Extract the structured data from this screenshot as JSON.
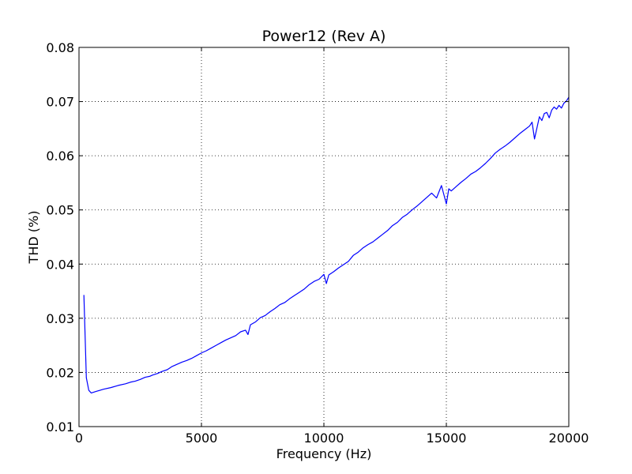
{
  "chart_data": {
    "type": "line",
    "title": "Power12 (Rev A)",
    "xlabel": "Frequency (Hz)",
    "ylabel": "THD (%)",
    "xlim": [
      0,
      20000
    ],
    "ylim": [
      0.01,
      0.08
    ],
    "xticks": [
      "0",
      "5000",
      "10000",
      "15000",
      "20000"
    ],
    "yticks": [
      "0.01",
      "0.02",
      "0.03",
      "0.04",
      "0.05",
      "0.06",
      "0.07",
      "0.08"
    ],
    "grid": true,
    "line_color": "#0000ff",
    "series": [
      {
        "x": [
          200,
          300,
          400,
          500,
          700,
          1000,
          1300,
          1600,
          1900,
          2100,
          2300,
          2500,
          2700,
          2900,
          3000,
          3200,
          3400,
          3600,
          3700,
          3800,
          4000,
          4200,
          4400,
          4600,
          4800,
          5000,
          5200,
          5400,
          5600,
          5800,
          6000,
          6200,
          6400,
          6600,
          6800,
          6900,
          7000,
          7200,
          7400,
          7600,
          7800,
          8000,
          8200,
          8400,
          8600,
          8800,
          9000,
          9200,
          9400,
          9600,
          9800,
          10000,
          10100,
          10200,
          10400,
          10600,
          10800,
          11000,
          11200,
          11400,
          11600,
          11800,
          12000,
          12200,
          12400,
          12600,
          12800,
          13000,
          13200,
          13400,
          13600,
          13800,
          14000,
          14200,
          14400,
          14600,
          14800,
          14900,
          15000,
          15100,
          15200,
          15400,
          15600,
          15800,
          16000,
          16200,
          16400,
          16600,
          16800,
          17000,
          17200,
          17400,
          17600,
          17800,
          18000,
          18200,
          18400,
          18500,
          18600,
          18800,
          18900,
          19000,
          19100,
          19200,
          19300,
          19400,
          19500,
          19600,
          19700,
          19800,
          19900,
          20000
        ],
        "y": [
          0.0343,
          0.019,
          0.0167,
          0.0162,
          0.0165,
          0.0169,
          0.0172,
          0.0176,
          0.0179,
          0.0182,
          0.0184,
          0.0187,
          0.0191,
          0.0193,
          0.0195,
          0.0198,
          0.0202,
          0.0205,
          0.0208,
          0.0211,
          0.0215,
          0.0219,
          0.0222,
          0.0226,
          0.0231,
          0.0236,
          0.024,
          0.0245,
          0.025,
          0.0255,
          0.026,
          0.0264,
          0.0268,
          0.0275,
          0.0278,
          0.027,
          0.0288,
          0.0293,
          0.0301,
          0.0305,
          0.0312,
          0.0318,
          0.0325,
          0.0329,
          0.0336,
          0.0342,
          0.0348,
          0.0354,
          0.0362,
          0.0368,
          0.0372,
          0.0381,
          0.0364,
          0.038,
          0.0386,
          0.0393,
          0.0399,
          0.0405,
          0.0416,
          0.0422,
          0.043,
          0.0436,
          0.0441,
          0.0448,
          0.0455,
          0.0462,
          0.0471,
          0.0477,
          0.0486,
          0.0492,
          0.05,
          0.0507,
          0.0515,
          0.0523,
          0.0531,
          0.0522,
          0.0545,
          0.0528,
          0.0511,
          0.0539,
          0.0535,
          0.0543,
          0.0551,
          0.0558,
          0.0566,
          0.0571,
          0.0578,
          0.0586,
          0.0595,
          0.0605,
          0.0612,
          0.0618,
          0.0625,
          0.0633,
          0.0641,
          0.0648,
          0.0655,
          0.0662,
          0.0631,
          0.0672,
          0.0665,
          0.0678,
          0.068,
          0.067,
          0.0684,
          0.069,
          0.0686,
          0.0693,
          0.0688,
          0.0697,
          0.0701,
          0.0708
        ]
      }
    ]
  }
}
